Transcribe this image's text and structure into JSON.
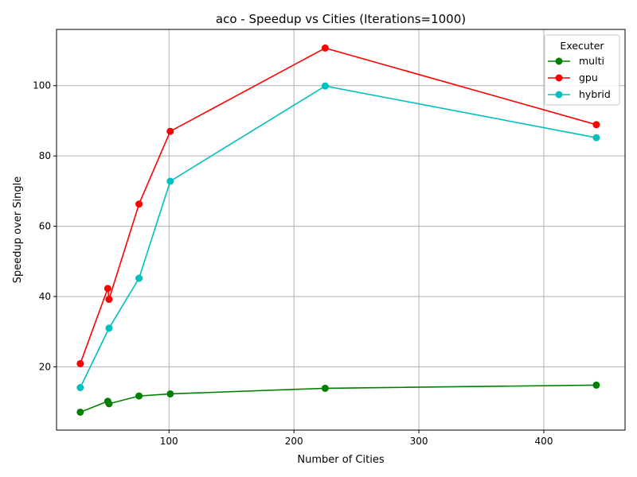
{
  "chart_data": {
    "type": "line",
    "title": "aco - Speedup vs Cities (Iterations=1000)",
    "xlabel": "Number of Cities",
    "ylabel": "Speedup over Single",
    "xlim": [
      10,
      465
    ],
    "ylim": [
      2,
      116
    ],
    "xticks": [
      100,
      200,
      300,
      400
    ],
    "yticks": [
      20,
      40,
      60,
      80,
      100
    ],
    "grid": true,
    "legend": {
      "title": "Executer",
      "placement": "top-right"
    },
    "series": [
      {
        "name": "multi",
        "color": "#008000",
        "x": [
          29,
          51,
          52,
          76,
          101,
          225,
          442
        ],
        "y": [
          7.1,
          10.2,
          9.5,
          11.7,
          12.3,
          13.9,
          14.8
        ]
      },
      {
        "name": "gpu",
        "color": "#ff0000",
        "x": [
          29,
          51,
          52,
          76,
          101,
          225,
          442
        ],
        "y": [
          20.9,
          42.3,
          39.2,
          66.3,
          87.0,
          110.7,
          88.9
        ]
      },
      {
        "name": "hybrid",
        "color": "#00bfbf",
        "x": [
          29,
          52,
          76,
          101,
          225,
          442
        ],
        "y": [
          14.1,
          31.0,
          45.2,
          72.8,
          99.9,
          85.2
        ]
      }
    ]
  }
}
